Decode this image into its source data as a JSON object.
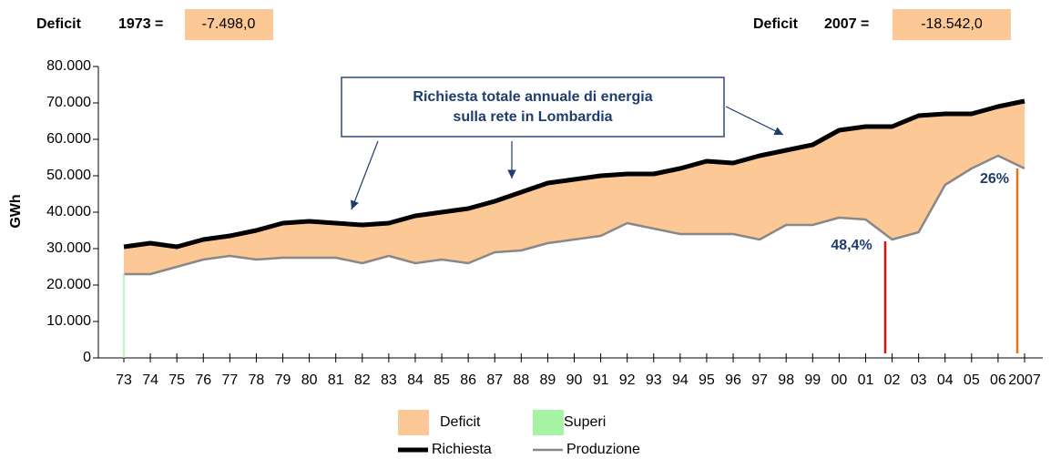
{
  "chart_data": {
    "type": "area-line",
    "header": {
      "left_label": "Deficit",
      "left_year": "1973 =",
      "left_value": "-7.498,0",
      "right_label": "Deficit",
      "right_year": "2007 =",
      "right_value": "-18.542,0"
    },
    "ylabel": "GWh",
    "annotation": "Richiesta totale annuale di energia sulla rete in Lombardia",
    "pct_2002": "48,4%",
    "pct_2007": "26%",
    "categories": [
      "73",
      "74",
      "75",
      "76",
      "77",
      "78",
      "79",
      "80",
      "81",
      "82",
      "83",
      "84",
      "85",
      "86",
      "87",
      "88",
      "89",
      "90",
      "91",
      "92",
      "93",
      "94",
      "95",
      "96",
      "97",
      "98",
      "99",
      "00",
      "01",
      "02",
      "03",
      "04",
      "05",
      "06",
      "2007"
    ],
    "series": [
      {
        "name": "Richiesta",
        "color": "#000000",
        "values": [
          30500,
          31500,
          30500,
          32500,
          33500,
          35000,
          37000,
          37500,
          37000,
          36500,
          37000,
          39000,
          40000,
          41000,
          43000,
          45500,
          48000,
          49000,
          50000,
          50500,
          50500,
          52000,
          54000,
          53500,
          55500,
          57000,
          58500,
          62500,
          63500,
          63500,
          66500,
          67000,
          67000,
          69000,
          70500
        ]
      },
      {
        "name": "Produzione",
        "color": "#888888",
        "values": [
          23000,
          23000,
          25000,
          27000,
          28000,
          27000,
          27500,
          27500,
          27500,
          26000,
          28000,
          26000,
          27000,
          26000,
          29000,
          29500,
          31500,
          32500,
          33500,
          37000,
          35500,
          34000,
          34000,
          34000,
          32500,
          36500,
          36500,
          38500,
          38000,
          32500,
          34500,
          47500,
          52000,
          55500,
          52000
        ]
      }
    ],
    "areas": [
      {
        "name": "Deficit",
        "color": "#fbc896"
      },
      {
        "name": "Superi",
        "color": "#a6f3a6"
      }
    ],
    "ylim": [
      0,
      80000
    ],
    "yticks": [
      0,
      {
        "value": 10000,
        "label": "10.000"
      },
      {
        "value": 20000,
        "label": "20.000"
      },
      {
        "value": 30000,
        "label": "30.000"
      },
      {
        "value": 40000,
        "label": "40.000"
      },
      {
        "value": 50000,
        "label": "50.000"
      },
      {
        "value": 60000,
        "label": "60.000"
      },
      {
        "value": 70000,
        "label": "70.000"
      },
      {
        "value": 80000,
        "label": "80.000"
      }
    ]
  }
}
